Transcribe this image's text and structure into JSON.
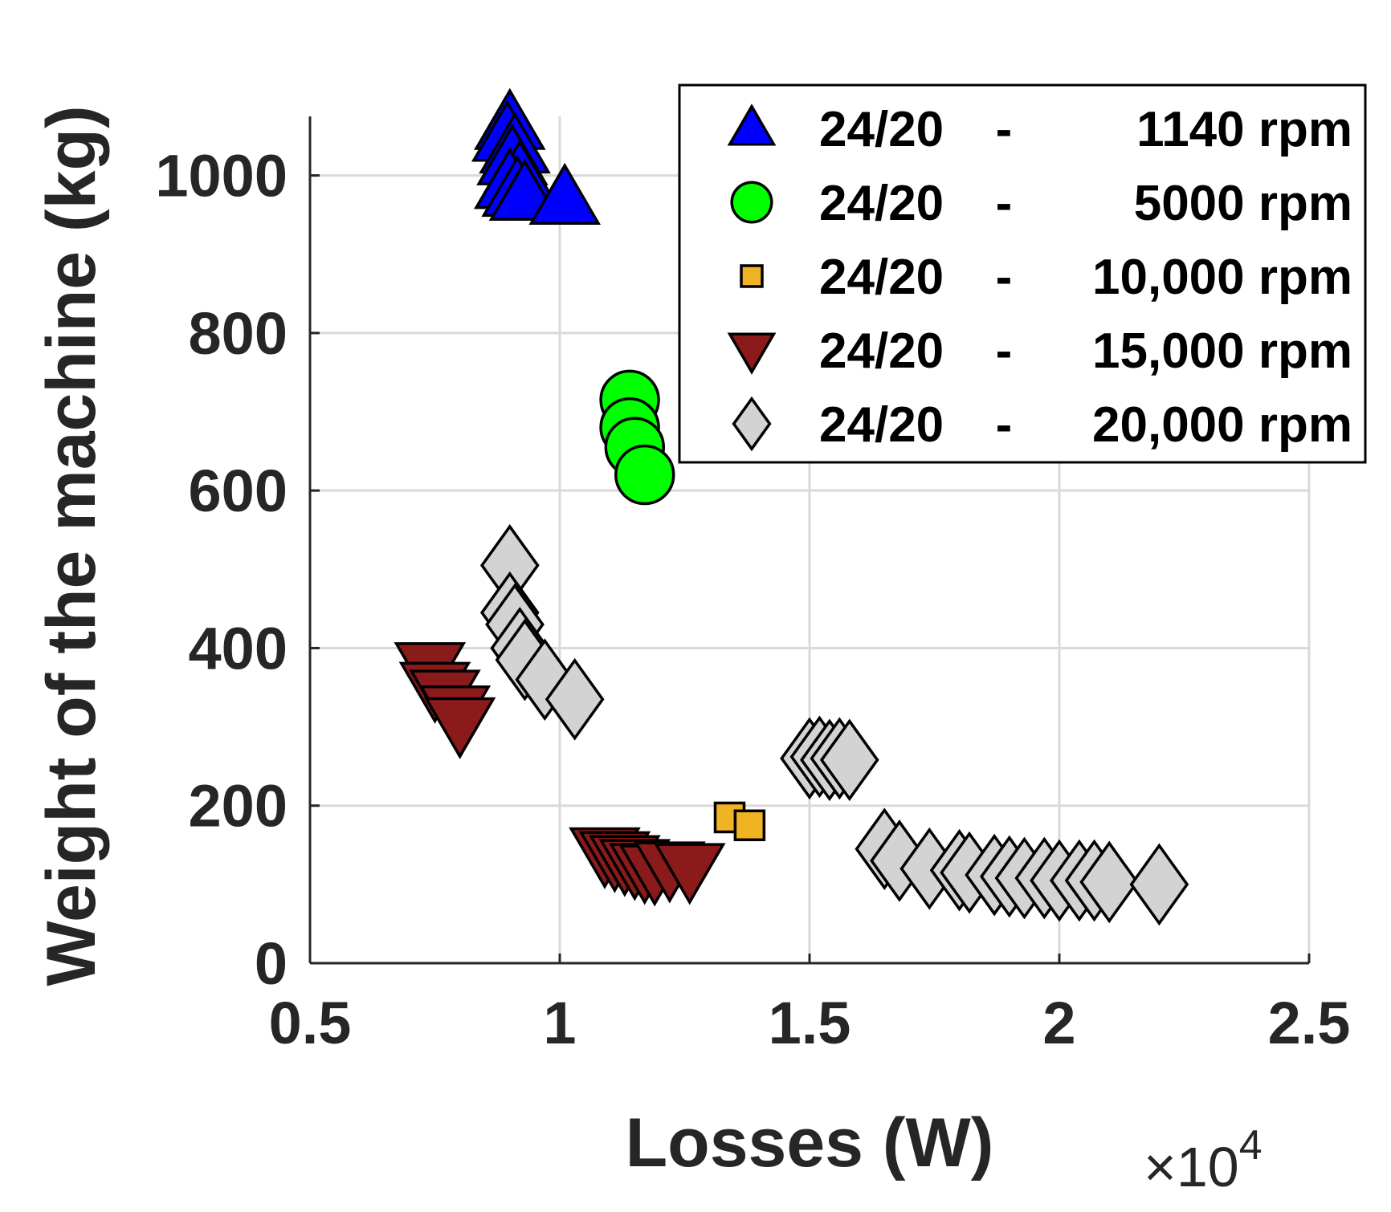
{
  "chart_data": {
    "type": "scatter",
    "title": "",
    "xlabel": "Losses (W)",
    "ylabel": "Weight of the machine (kg)",
    "x_exponent_label": "×10",
    "x_exponent_power": "4",
    "xlim": [
      0.5,
      2.5
    ],
    "ylim": [
      0,
      1075
    ],
    "xticks": [
      0.5,
      1,
      1.5,
      2,
      2.5
    ],
    "xtick_labels": [
      "0.5",
      "1",
      "1.5",
      "2",
      "2.5"
    ],
    "yticks": [
      0,
      200,
      400,
      600,
      800,
      1000
    ],
    "ytick_labels": [
      "0",
      "200",
      "400",
      "600",
      "800",
      "1000"
    ],
    "grid": true,
    "legend_position": "top-right",
    "series": [
      {
        "name": "24/20 - 1140 rpm",
        "legend_config": "24/20",
        "legend_sep": "-",
        "legend_speed": "1140 rpm",
        "marker": "triangle-up",
        "color": "#0000ff",
        "points": [
          [
            0.9,
            1065
          ],
          [
            0.895,
            1050
          ],
          [
            0.91,
            1035
          ],
          [
            0.905,
            1020
          ],
          [
            0.92,
            1000
          ],
          [
            0.9,
            990
          ],
          [
            0.915,
            980
          ],
          [
            0.93,
            975
          ],
          [
            1.01,
            970
          ]
        ]
      },
      {
        "name": "24/20 - 5000 rpm",
        "legend_config": "24/20",
        "legend_sep": "-",
        "legend_speed": "5000 rpm",
        "marker": "circle",
        "color": "#00ff00",
        "points": [
          [
            1.14,
            715
          ],
          [
            1.14,
            680
          ],
          [
            1.15,
            655
          ],
          [
            1.17,
            620
          ]
        ]
      },
      {
        "name": "24/20 - 10,000 rpm",
        "legend_config": "24/20",
        "legend_sep": "-",
        "legend_speed": "10,000 rpm",
        "marker": "square",
        "color": "#f0b323",
        "points": [
          [
            1.34,
            185
          ],
          [
            1.38,
            175
          ]
        ]
      },
      {
        "name": "24/20 - 15,000 rpm",
        "legend_config": "24/20",
        "legend_sep": "-",
        "legend_speed": "15,000 rpm",
        "marker": "triangle-down",
        "color": "#8b1a1a",
        "points": [
          [
            0.74,
            375
          ],
          [
            0.75,
            350
          ],
          [
            0.77,
            340
          ],
          [
            0.79,
            320
          ],
          [
            0.8,
            305
          ],
          [
            1.09,
            140
          ],
          [
            1.11,
            135
          ],
          [
            1.13,
            130
          ],
          [
            1.15,
            125
          ],
          [
            1.17,
            120
          ],
          [
            1.19,
            118
          ],
          [
            1.22,
            122
          ],
          [
            1.26,
            120
          ]
        ]
      },
      {
        "name": "24/20 - 20,000 rpm",
        "legend_config": "24/20",
        "legend_sep": "-",
        "legend_speed": "20,000 rpm",
        "marker": "diamond",
        "color": "#d3d3d3",
        "points": [
          [
            0.9,
            505
          ],
          [
            0.9,
            445
          ],
          [
            0.91,
            430
          ],
          [
            0.92,
            400
          ],
          [
            0.93,
            385
          ],
          [
            0.97,
            360
          ],
          [
            1.03,
            335
          ],
          [
            1.5,
            260
          ],
          [
            1.52,
            262
          ],
          [
            1.54,
            258
          ],
          [
            1.56,
            260
          ],
          [
            1.58,
            258
          ],
          [
            1.65,
            145
          ],
          [
            1.68,
            130
          ],
          [
            1.74,
            120
          ],
          [
            1.8,
            118
          ],
          [
            1.82,
            115
          ],
          [
            1.87,
            112
          ],
          [
            1.9,
            110
          ],
          [
            1.93,
            108
          ],
          [
            1.97,
            108
          ],
          [
            2.0,
            105
          ],
          [
            2.04,
            105
          ],
          [
            2.07,
            105
          ],
          [
            2.1,
            103
          ],
          [
            2.2,
            100
          ]
        ]
      }
    ]
  }
}
